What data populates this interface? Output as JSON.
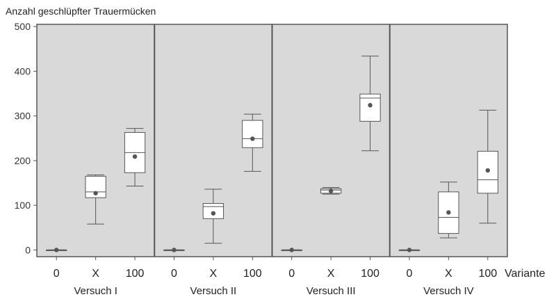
{
  "chart_data": {
    "type": "boxplot",
    "ylabel": "Anzahl geschlüpfter Trauermücken",
    "xlabel": "Variante",
    "ylim": [
      -15,
      505
    ],
    "yticks": [
      0,
      100,
      200,
      300,
      400,
      500
    ],
    "grid": false,
    "background": "#d9d9d9",
    "box_fill": "#ffffff",
    "line_color": "#555555",
    "mean_color": "#555555",
    "panels": [
      {
        "label": "Versuch I",
        "groups": [
          {
            "category": "0",
            "min": 0,
            "q1": 0,
            "median": 0,
            "q3": 0,
            "max": 0,
            "mean": 0
          },
          {
            "category": "X",
            "min": 58,
            "q1": 117,
            "median": 130,
            "q3": 165,
            "max": 168,
            "mean": 127
          },
          {
            "category": "100",
            "min": 143,
            "q1": 173,
            "median": 218,
            "q3": 263,
            "max": 272,
            "mean": 209
          }
        ]
      },
      {
        "label": "Versuch II",
        "groups": [
          {
            "category": "0",
            "min": 0,
            "q1": 0,
            "median": 0,
            "q3": 0,
            "max": 0,
            "mean": 0
          },
          {
            "category": "X",
            "min": 15,
            "q1": 70,
            "median": 97,
            "q3": 104,
            "max": 136,
            "mean": 82
          },
          {
            "category": "100",
            "min": 176,
            "q1": 229,
            "median": 249,
            "q3": 290,
            "max": 304,
            "mean": 249
          }
        ]
      },
      {
        "label": "Versuch III",
        "groups": [
          {
            "category": "0",
            "min": 0,
            "q1": 0,
            "median": 0,
            "q3": 0,
            "max": 0,
            "mean": 0
          },
          {
            "category": "X",
            "min": 125,
            "q1": 127,
            "median": 134,
            "q3": 137,
            "max": 140,
            "mean": 132
          },
          {
            "category": "100",
            "min": 222,
            "q1": 288,
            "median": 340,
            "q3": 349,
            "max": 434,
            "mean": 324
          }
        ]
      },
      {
        "label": "Versuch IV",
        "groups": [
          {
            "category": "0",
            "min": 0,
            "q1": 0,
            "median": 0,
            "q3": 0,
            "max": 0,
            "mean": 0
          },
          {
            "category": "X",
            "min": 27,
            "q1": 37,
            "median": 73,
            "q3": 130,
            "max": 152,
            "mean": 84
          },
          {
            "category": "100",
            "min": 60,
            "q1": 127,
            "median": 157,
            "q3": 221,
            "max": 313,
            "mean": 178
          }
        ]
      }
    ]
  }
}
